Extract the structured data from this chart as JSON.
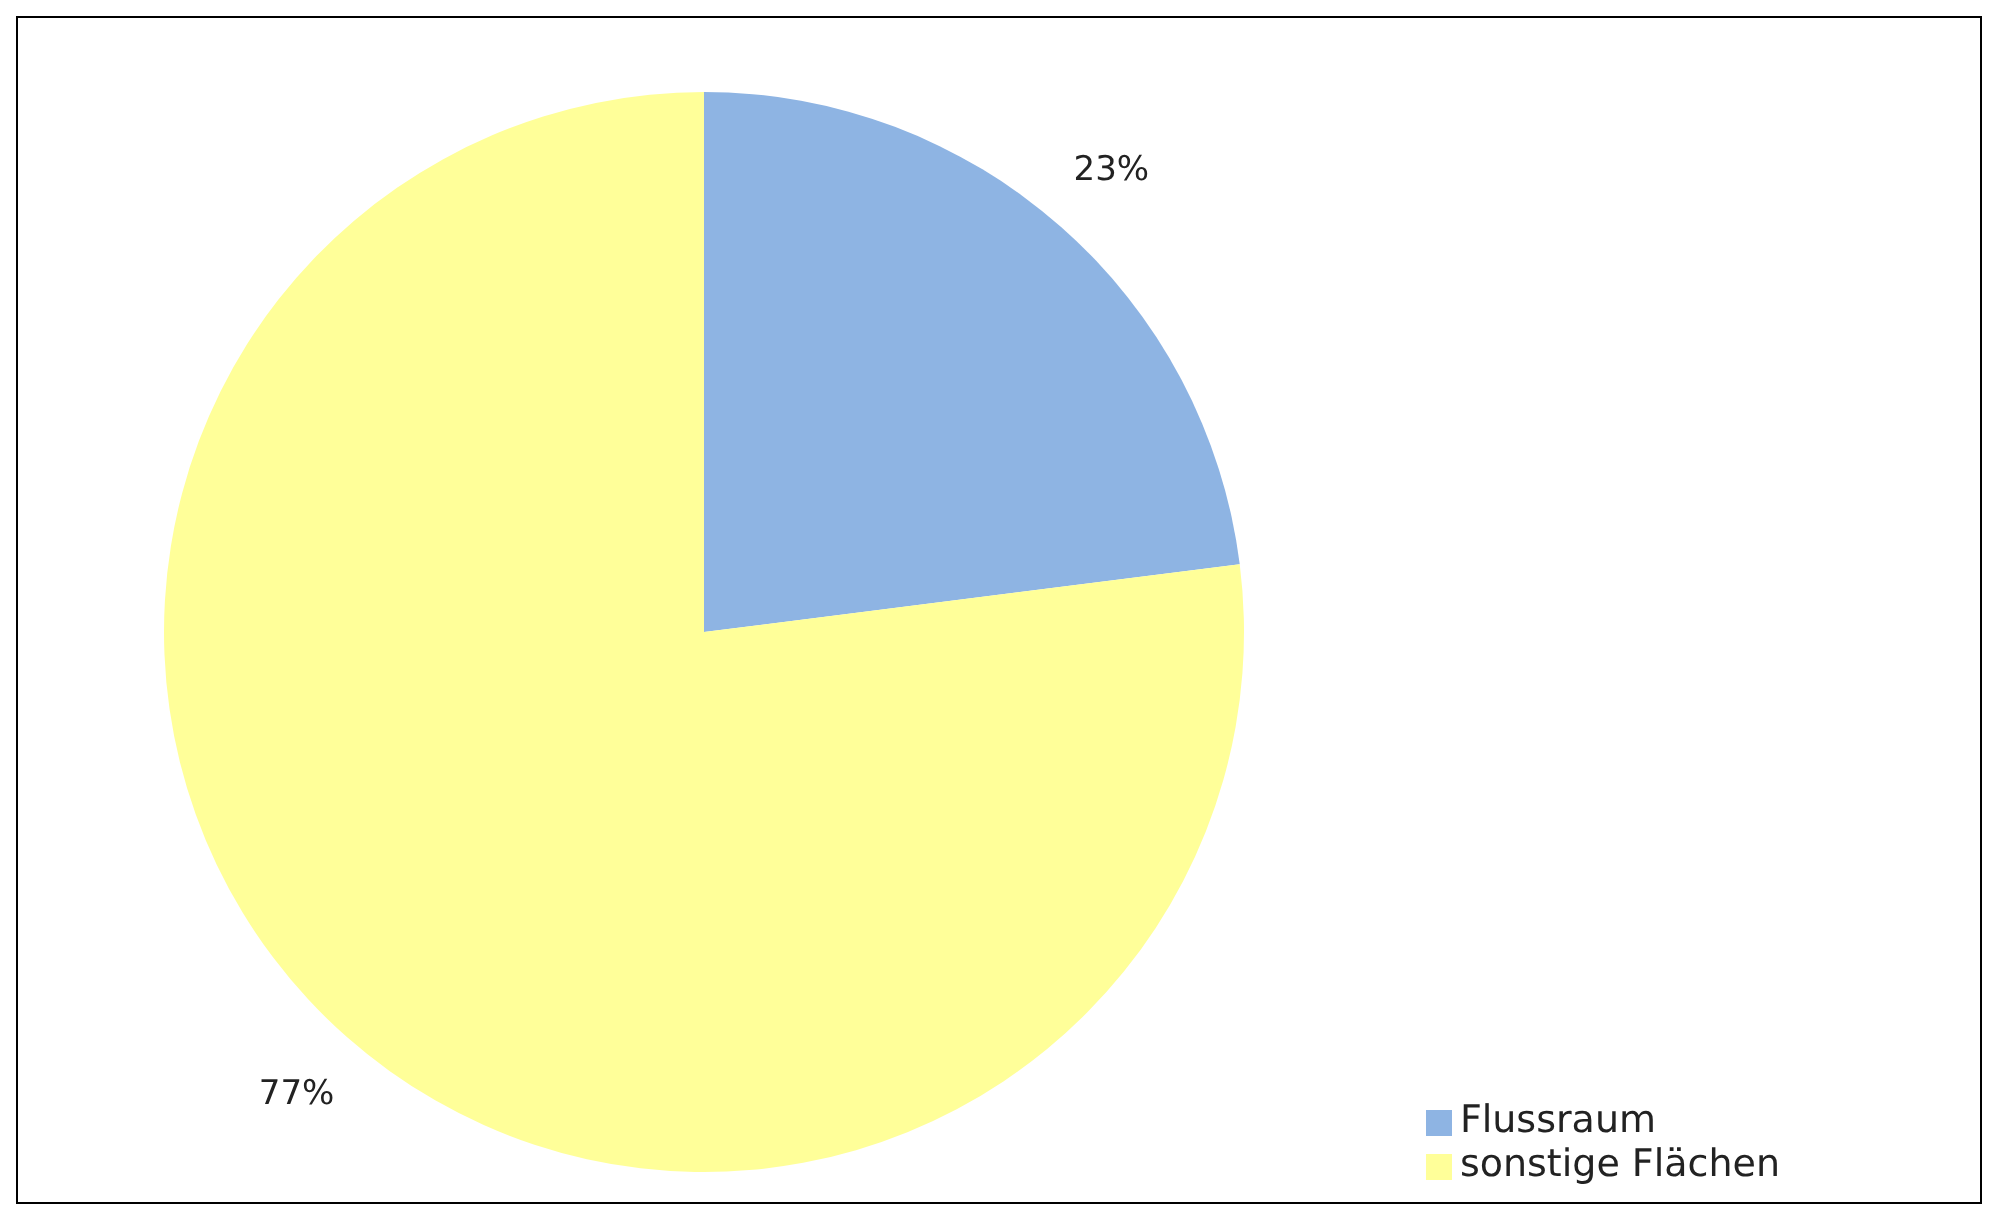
{
  "chart_data": {
    "type": "pie",
    "categories": [
      "Flussraum",
      "sonstige Flächen"
    ],
    "values": [
      23,
      77
    ],
    "colors": [
      "#8eb4e3",
      "#ffff99"
    ],
    "value_labels": [
      "23%",
      "77%"
    ],
    "legend": "bottom right"
  }
}
